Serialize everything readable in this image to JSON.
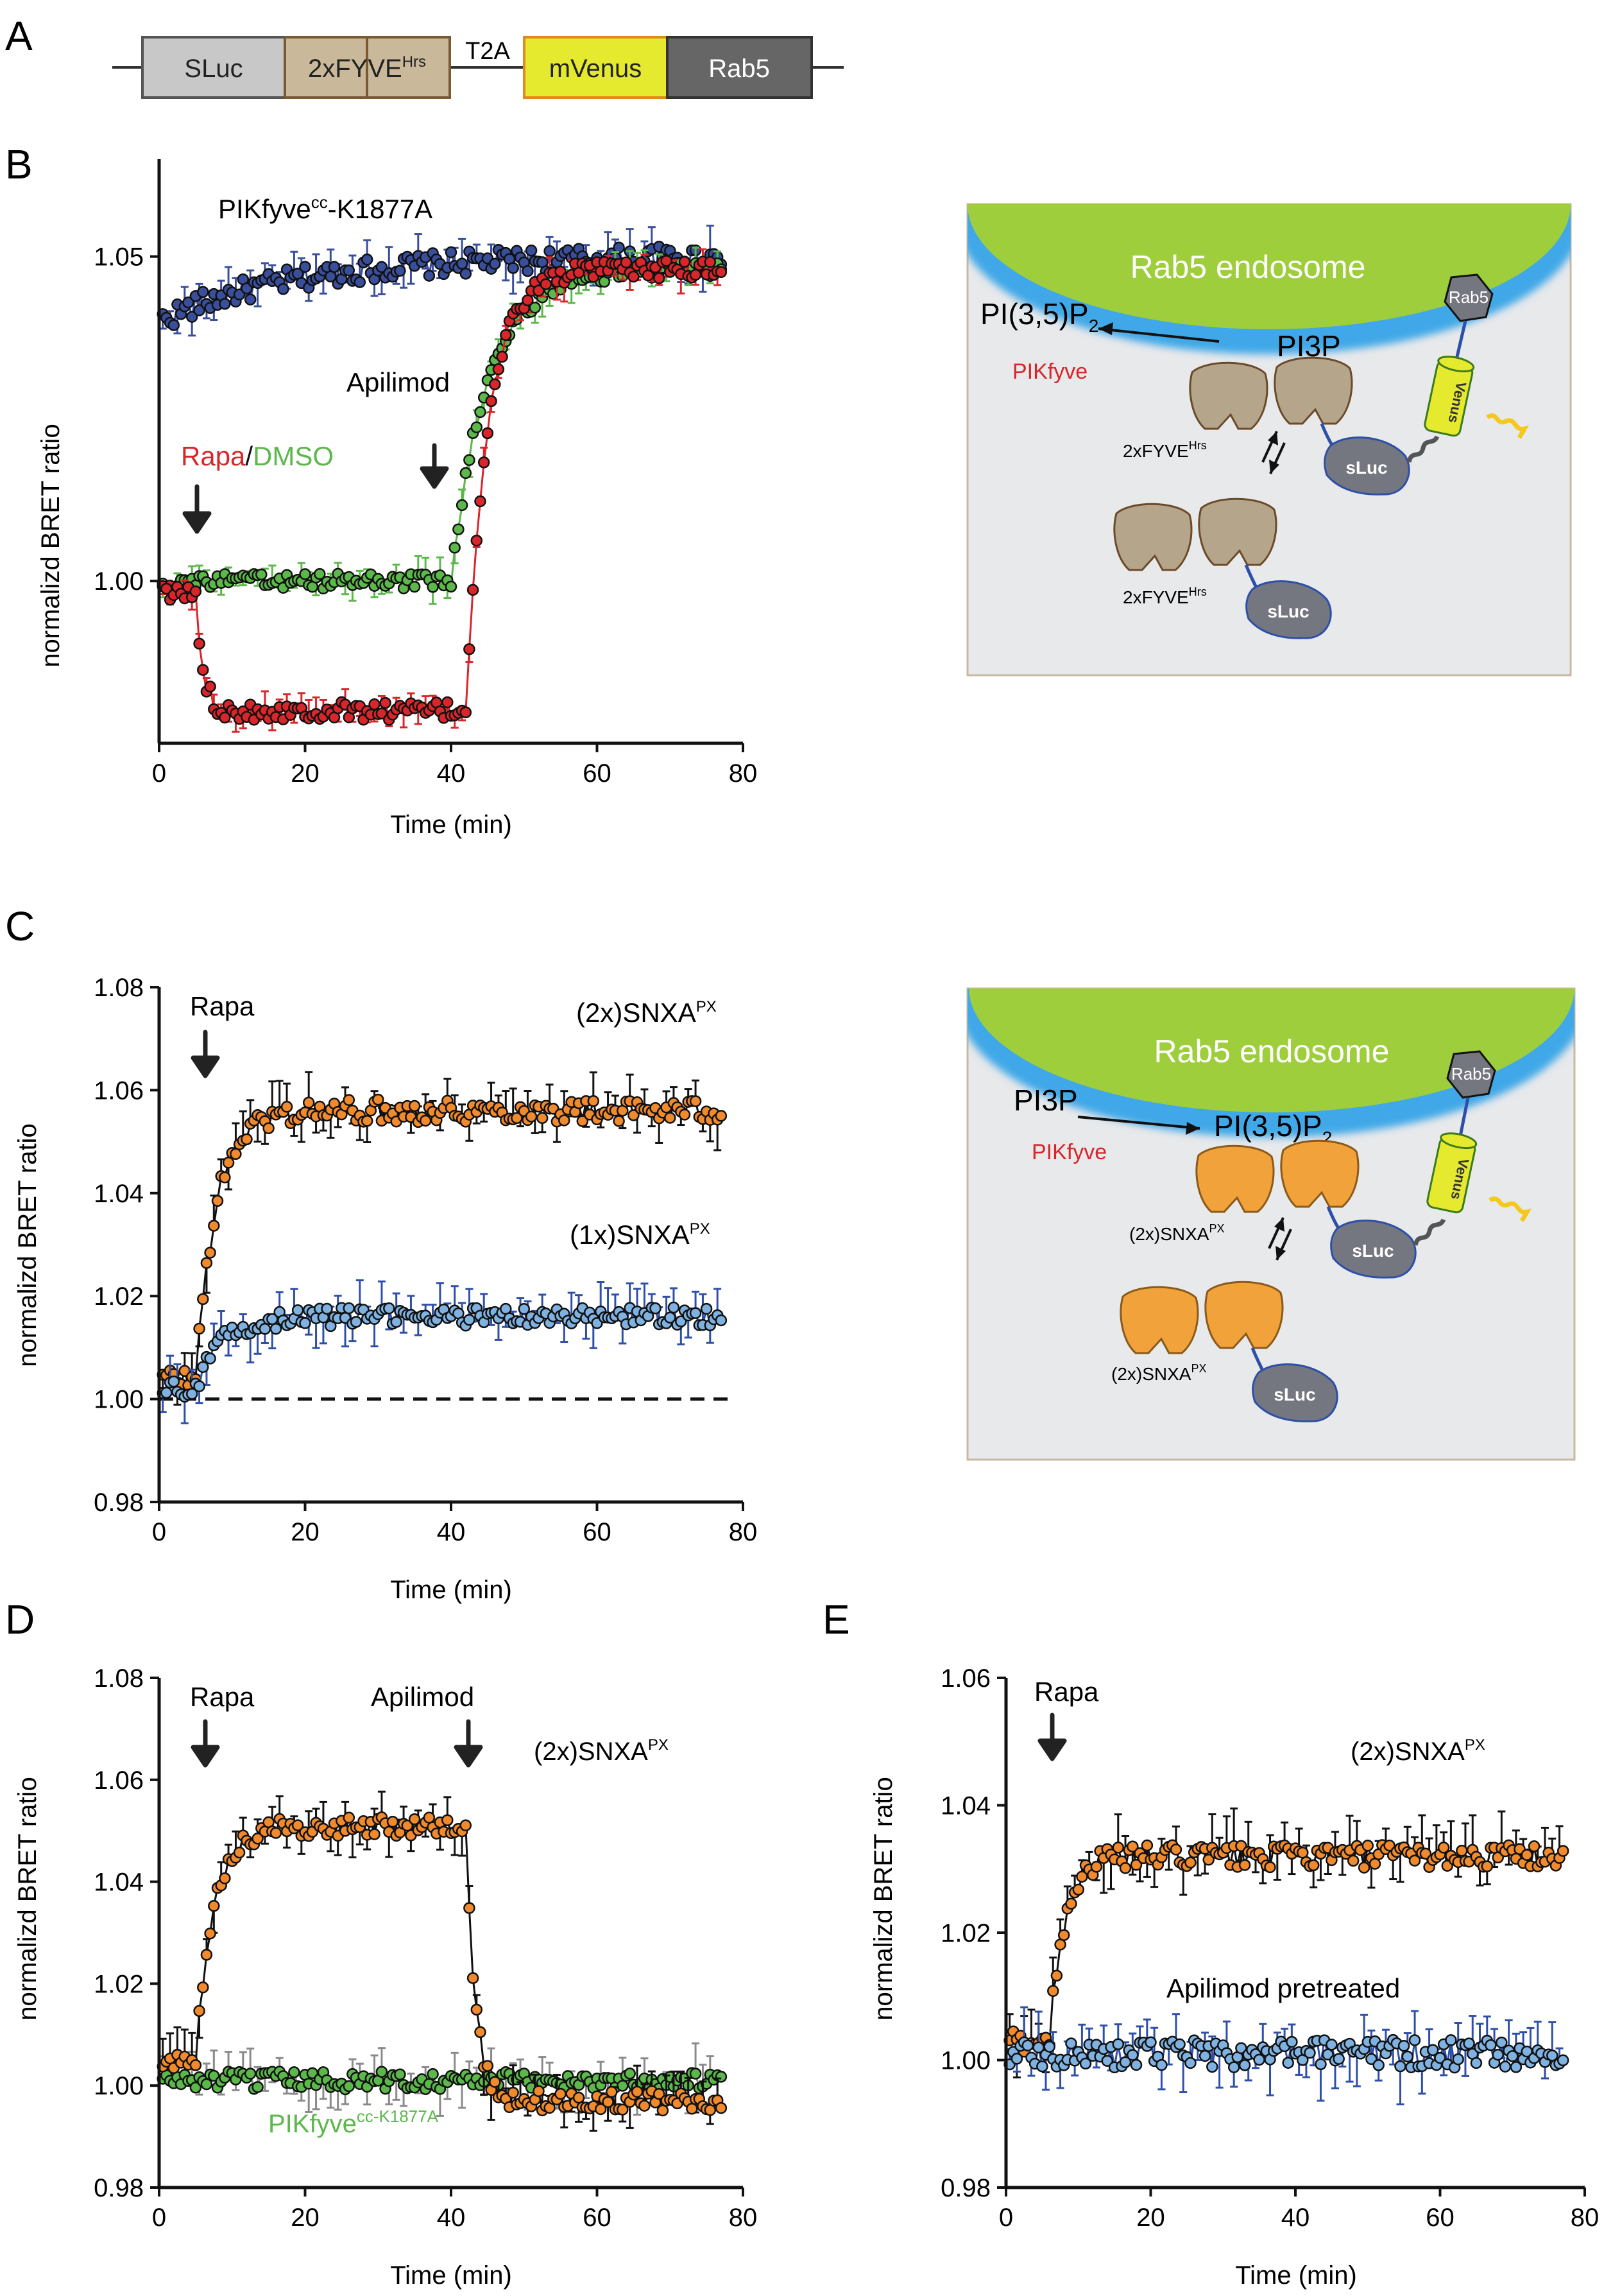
{
  "panel_letters": [
    "A",
    "B",
    "C",
    "D",
    "E"
  ],
  "construct": {
    "segments": [
      {
        "label": "SLuc",
        "sup": "",
        "fill": "#c8c8c8",
        "stroke": "#555555",
        "text": "#222222"
      },
      {
        "label": "2xFYVE",
        "sup": "Hrs",
        "fill": "#c9b89a",
        "stroke": "#7a5a32",
        "text": "#222222"
      },
      {
        "label": "mVenus",
        "sup": "",
        "fill": "#e6ea2e",
        "stroke": "#e08a1e",
        "text": "#222222"
      },
      {
        "label": "Rab5",
        "sup": "",
        "fill": "#666666",
        "stroke": "#333333",
        "text": "#ffffff"
      }
    ],
    "linker_label": "T2A"
  },
  "colors": {
    "red": "#d8262b",
    "green": "#5cb84a",
    "navy": "#3a4f9c",
    "orange": "#f08a2c",
    "lightblue": "#7fb2e0",
    "blueline": "#2e4fa8",
    "endosome_green": "#9fce3c",
    "membrane_blue": "#41a8e8",
    "fyve_fill": "#b5a58a",
    "snx_fill": "#f2a23a",
    "sluc_fill": "#74777f",
    "pikfyve_red": "#d8262b"
  },
  "chart_data": [
    {
      "id": "B",
      "type": "scatter",
      "xlabel": "Time (min)",
      "ylabel": "normalizd BRET ratio",
      "xlim": [
        0,
        80
      ],
      "ylim": [
        0.975,
        1.065
      ],
      "xticks": [
        0,
        20,
        40,
        60,
        80
      ],
      "yticks": [
        1.0,
        1.05
      ],
      "grid": false,
      "series": [
        {
          "name": "",
          "color": "navy",
          "curve": {
            "base": 1.04,
            "steps": [
              {
                "at": 0,
                "delta": 0.01,
                "tau": 18
              }
            ]
          },
          "noise": 0.0018,
          "err": 0.003
        },
        {
          "name": "",
          "color": "green",
          "curve": {
            "base": 1.0,
            "steps": [
              {
                "at": 40,
                "delta": 0.048,
                "tau": 5
              }
            ]
          },
          "noise": 0.0012,
          "err": 0.002
        },
        {
          "name": "",
          "color": "red",
          "curve": {
            "base": 0.998,
            "steps": [
              {
                "at": 5,
                "delta": -0.018,
                "tau": 1.0
              },
              {
                "at": 42,
                "delta": 0.068,
                "tau": 3
              }
            ]
          },
          "noise": 0.0014,
          "err": 0.002
        }
      ],
      "annotations": {
        "title_main": "PIKfyve",
        "title_sup": "cc",
        "title_tail": "-K1877A",
        "label_red": "Rapa",
        "label_sep": "/",
        "label_green": "DMSO",
        "arrow1_label": "",
        "arrow1_x": 5,
        "arrow2_label": "Apilimod",
        "arrow2_x": 39
      }
    },
    {
      "id": "C",
      "type": "scatter",
      "xlabel": "Time (min)",
      "ylabel": "normalizd BRET ratio",
      "xlim": [
        0,
        80
      ],
      "ylim": [
        0.98,
        1.08
      ],
      "xticks": [
        0,
        20,
        40,
        60,
        80
      ],
      "yticks": [
        0.98,
        1.0,
        1.02,
        1.04,
        1.06,
        1.08
      ],
      "grid": false,
      "dashed_reference": 1.0,
      "series": [
        {
          "name": "(2x)SNXA",
          "name_sup": "PX",
          "color": "orange",
          "curve": {
            "base": 1.004,
            "steps": [
              {
                "at": 5,
                "delta": 0.052,
                "tau": 2.8
              }
            ]
          },
          "noise": 0.0022,
          "err": 0.004
        },
        {
          "name": "(1x)SNXA",
          "name_sup": "PX",
          "color": "lightblue",
          "curve": {
            "base": 1.002,
            "steps": [
              {
                "at": 5,
                "delta": 0.014,
                "tau": 3.5
              }
            ]
          },
          "noise": 0.0018,
          "err": 0.004
        }
      ],
      "annotations": {
        "arrow1_label": "Rapa",
        "arrow1_x": 6
      }
    },
    {
      "id": "D",
      "type": "scatter",
      "xlabel": "Time (min)",
      "ylabel": "normalizd BRET ratio",
      "xlim": [
        0,
        80
      ],
      "ylim": [
        0.98,
        1.08
      ],
      "xticks": [
        0,
        20,
        40,
        60,
        80
      ],
      "yticks": [
        0.98,
        1.0,
        1.02,
        1.04,
        1.06,
        1.08
      ],
      "grid": false,
      "series": [
        {
          "name": "PIKfyve",
          "name_sup": "cc-K1877A",
          "color": "green",
          "curve": {
            "base": 1.001,
            "steps": []
          },
          "noise": 0.0018,
          "err": 0.004
        },
        {
          "name": "(2x)SNXA",
          "name_sup": "PX",
          "color": "orange",
          "curve": {
            "base": 1.005,
            "steps": [
              {
                "at": 5,
                "delta": 0.046,
                "tau": 2.5
              },
              {
                "at": 42,
                "delta": -0.054,
                "tau": 1.3
              }
            ]
          },
          "noise": 0.002,
          "err": 0.004
        }
      ],
      "annotations": {
        "arrow1_label": "Rapa",
        "arrow1_x": 6,
        "arrow2_label": "Apilimod",
        "arrow2_x": 42
      }
    },
    {
      "id": "E",
      "type": "scatter",
      "xlabel": "Time (min)",
      "ylabel": "normalizd BRET ratio",
      "xlim": [
        0,
        80
      ],
      "ylim": [
        0.98,
        1.06
      ],
      "xticks": [
        0,
        20,
        40,
        60,
        80
      ],
      "yticks": [
        0.98,
        1.0,
        1.02,
        1.04,
        1.06
      ],
      "grid": false,
      "series": [
        {
          "name": "(2x)SNXA",
          "name_sup": "PX",
          "color": "orange",
          "curve": {
            "base": 1.003,
            "steps": [
              {
                "at": 6,
                "delta": 0.029,
                "tau": 2.0
              }
            ]
          },
          "noise": 0.0018,
          "err": 0.004
        },
        {
          "name": "Apilimod pretreated",
          "name_sup": "",
          "color": "lightblue",
          "curve": {
            "base": 1.001,
            "steps": []
          },
          "noise": 0.0022,
          "err": 0.004
        }
      ],
      "annotations": {
        "arrow1_label": "Rapa",
        "arrow1_x": 6
      }
    }
  ],
  "schematic_B": {
    "endosome_label": "Rab5 endosome",
    "product_main": "PI(3,5)P",
    "product_sub": "2",
    "substrate": "PI3P",
    "enzyme": "PIKfyve",
    "probe_main": "2xFYVE",
    "probe_sup": "Hrs",
    "luc": "sLuc",
    "rab": "Rab5",
    "venus": "Venus"
  },
  "schematic_C": {
    "endosome_label": "Rab5 endosome",
    "substrate": "PI3P",
    "product_main": "PI(3,5)P",
    "product_sub": "2",
    "enzyme": "PIKfyve",
    "probe_main": "(2x)SNXA",
    "probe_sup": "PX",
    "luc": "sLuc",
    "rab": "Rab5",
    "venus": "Venus"
  }
}
